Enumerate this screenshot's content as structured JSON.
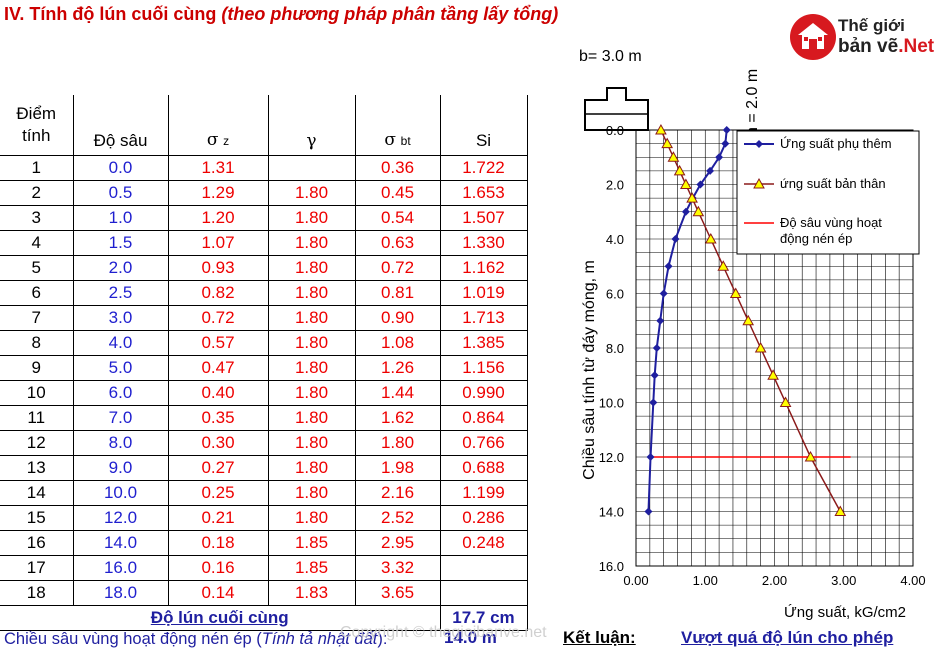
{
  "title_main": "IV. Tính độ lún cuối cùng",
  "title_sub": "(theo phương pháp phân tầng lấy tổng)",
  "logo": {
    "line1": "Thế giới",
    "line2a": "bản vẽ",
    "line2b": ".Net"
  },
  "table": {
    "headers": {
      "c1a": "Điểm",
      "c1b": "tính",
      "c2": "Độ sâu",
      "c3": "σ",
      "c3sub": "z",
      "c4": "γ",
      "c5": "σ",
      "c5sub": "bt",
      "c6": "Si"
    },
    "rows": [
      {
        "pt": "1",
        "depth": "0.0",
        "sz": "1.31",
        "gamma": "",
        "sbt": "0.36",
        "si": "1.722"
      },
      {
        "pt": "2",
        "depth": "0.5",
        "sz": "1.29",
        "gamma": "1.80",
        "sbt": "0.45",
        "si": "1.653"
      },
      {
        "pt": "3",
        "depth": "1.0",
        "sz": "1.20",
        "gamma": "1.80",
        "sbt": "0.54",
        "si": "1.507"
      },
      {
        "pt": "4",
        "depth": "1.5",
        "sz": "1.07",
        "gamma": "1.80",
        "sbt": "0.63",
        "si": "1.330"
      },
      {
        "pt": "5",
        "depth": "2.0",
        "sz": "0.93",
        "gamma": "1.80",
        "sbt": "0.72",
        "si": "1.162"
      },
      {
        "pt": "6",
        "depth": "2.5",
        "sz": "0.82",
        "gamma": "1.80",
        "sbt": "0.81",
        "si": "1.019"
      },
      {
        "pt": "7",
        "depth": "3.0",
        "sz": "0.72",
        "gamma": "1.80",
        "sbt": "0.90",
        "si": "1.713"
      },
      {
        "pt": "8",
        "depth": "4.0",
        "sz": "0.57",
        "gamma": "1.80",
        "sbt": "1.08",
        "si": "1.385"
      },
      {
        "pt": "9",
        "depth": "5.0",
        "sz": "0.47",
        "gamma": "1.80",
        "sbt": "1.26",
        "si": "1.156"
      },
      {
        "pt": "10",
        "depth": "6.0",
        "sz": "0.40",
        "gamma": "1.80",
        "sbt": "1.44",
        "si": "0.990"
      },
      {
        "pt": "11",
        "depth": "7.0",
        "sz": "0.35",
        "gamma": "1.80",
        "sbt": "1.62",
        "si": "0.864"
      },
      {
        "pt": "12",
        "depth": "8.0",
        "sz": "0.30",
        "gamma": "1.80",
        "sbt": "1.80",
        "si": "0.766"
      },
      {
        "pt": "13",
        "depth": "9.0",
        "sz": "0.27",
        "gamma": "1.80",
        "sbt": "1.98",
        "si": "0.688"
      },
      {
        "pt": "14",
        "depth": "10.0",
        "sz": "0.25",
        "gamma": "1.80",
        "sbt": "2.16",
        "si": "1.199"
      },
      {
        "pt": "15",
        "depth": "12.0",
        "sz": "0.21",
        "gamma": "1.80",
        "sbt": "2.52",
        "si": "0.286"
      },
      {
        "pt": "16",
        "depth": "14.0",
        "sz": "0.18",
        "gamma": "1.85",
        "sbt": "2.95",
        "si": "0.248"
      },
      {
        "pt": "17",
        "depth": "16.0",
        "sz": "0.16",
        "gamma": "1.85",
        "sbt": "3.32",
        "si": ""
      },
      {
        "pt": "18",
        "depth": "18.0",
        "sz": "0.14",
        "gamma": "1.83",
        "sbt": "3.65",
        "si": ""
      }
    ],
    "total_label": "Độ lún cuối cùng",
    "total_value": "17.7 cm"
  },
  "bottom": {
    "active_depth_label": "Chiều sâu vùng hoạt động nén ép (",
    "active_depth_note": "Tính tả nhật đất",
    "active_depth_close": "):",
    "active_depth_value": "14.0 m",
    "conclusion_label": "Kết luận:",
    "conclusion_value": "Vượt quá độ lún cho phép"
  },
  "watermark": "Copyright © thegioibanve.net",
  "colors": {
    "title": "#cc0000",
    "blue": "#1f1fcf",
    "red": "#ee0000",
    "series1": "#1f1f9f",
    "series2": "#8b1a1a",
    "marker2": "#ffff00",
    "active_line": "#ff0000"
  },
  "chart_data": {
    "type": "line",
    "footing_width_label": "b= 3.0 m",
    "footing_depth_label": "h = 2.0 m",
    "xlabel": "Ứng suất, kG/cm2",
    "ylabel": "Chiều sâu tính từ đáy móng, m",
    "xlim": [
      0,
      4
    ],
    "ylim": [
      0,
      16
    ],
    "y_inverted": true,
    "x_ticks": [
      "0.00",
      "1.00",
      "2.00",
      "3.00",
      "4.00"
    ],
    "y_ticks": [
      "0.0",
      "2.0",
      "4.0",
      "6.0",
      "8.0",
      "10.0",
      "12.0",
      "14.0",
      "16.0"
    ],
    "grid": true,
    "legend_position": "top-right",
    "series": [
      {
        "name": "Ứng suất phụ thêm",
        "marker": "diamond",
        "points": [
          [
            1.31,
            0
          ],
          [
            1.29,
            0.5
          ],
          [
            1.2,
            1.0
          ],
          [
            1.07,
            1.5
          ],
          [
            0.93,
            2.0
          ],
          [
            0.82,
            2.5
          ],
          [
            0.72,
            3.0
          ],
          [
            0.57,
            4.0
          ],
          [
            0.47,
            5.0
          ],
          [
            0.4,
            6.0
          ],
          [
            0.35,
            7.0
          ],
          [
            0.3,
            8.0
          ],
          [
            0.27,
            9.0
          ],
          [
            0.25,
            10.0
          ],
          [
            0.21,
            12.0
          ],
          [
            0.18,
            14.0
          ]
        ]
      },
      {
        "name": "ứng suất bản thân",
        "marker": "triangle",
        "points": [
          [
            0.36,
            0
          ],
          [
            0.45,
            0.5
          ],
          [
            0.54,
            1.0
          ],
          [
            0.63,
            1.5
          ],
          [
            0.72,
            2.0
          ],
          [
            0.81,
            2.5
          ],
          [
            0.9,
            3.0
          ],
          [
            1.08,
            4.0
          ],
          [
            1.26,
            5.0
          ],
          [
            1.44,
            6.0
          ],
          [
            1.62,
            7.0
          ],
          [
            1.8,
            8.0
          ],
          [
            1.98,
            9.0
          ],
          [
            2.16,
            10.0
          ],
          [
            2.52,
            12.0
          ],
          [
            2.95,
            14.0
          ]
        ]
      }
    ],
    "active_depth": {
      "name": "Độ sâu vùng hoạt",
      "name_line2": "động nén ép",
      "y": 12.0,
      "x_range": [
        0.2,
        3.1
      ]
    }
  }
}
